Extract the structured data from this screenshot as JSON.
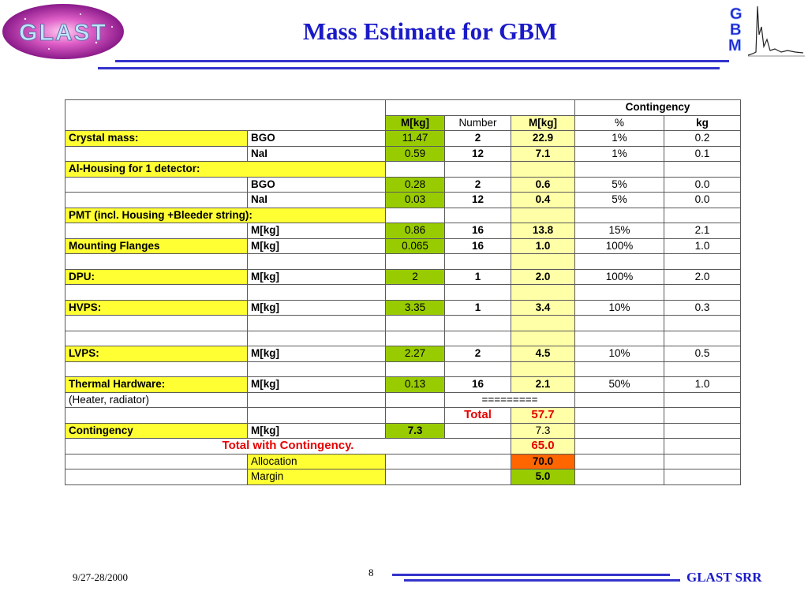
{
  "header": {
    "title": "Mass Estimate for GBM",
    "glast_logo_text": "GLAST",
    "gbm_logo_text": [
      "G",
      "B",
      "M"
    ]
  },
  "table": {
    "group_header": "Contingency",
    "columns": [
      "M[kg]",
      "Number",
      "M[kg]",
      "%",
      "kg"
    ],
    "rows": [
      {
        "label": "Crystal mass:",
        "sub": "BGO",
        "m": "11.47",
        "num": "2",
        "mt": "22.9",
        "pct": "1%",
        "kg": "0.2"
      },
      {
        "label": "",
        "sub": "NaI",
        "m": "0.59",
        "num": "12",
        "mt": "7.1",
        "pct": "1%",
        "kg": "0.1"
      },
      {
        "label": "Al-Housing for 1 detector:",
        "sub": "",
        "m": "",
        "num": "",
        "mt": "",
        "pct": "",
        "kg": ""
      },
      {
        "label": "",
        "sub": "BGO",
        "m": "0.28",
        "num": "2",
        "mt": "0.6",
        "pct": "5%",
        "kg": "0.0"
      },
      {
        "label": "",
        "sub": "NaI",
        "m": "0.03",
        "num": "12",
        "mt": "0.4",
        "pct": "5%",
        "kg": "0.0"
      },
      {
        "label": "PMT (incl. Housing +Bleeder string):",
        "sub": "",
        "m": "",
        "num": "",
        "mt": "",
        "pct": "",
        "kg": ""
      },
      {
        "label": "",
        "sub": "M[kg]",
        "m": "0.86",
        "num": "16",
        "mt": "13.8",
        "pct": "15%",
        "kg": "2.1"
      },
      {
        "label": "Mounting Flanges",
        "sub": "M[kg]",
        "m": "0.065",
        "num": "16",
        "mt": "1.0",
        "pct": "100%",
        "kg": "1.0"
      },
      {
        "label": "",
        "sub": "",
        "m": "",
        "num": "",
        "mt": "",
        "pct": "",
        "kg": ""
      },
      {
        "label": "DPU:",
        "sub": "M[kg]",
        "m": "2",
        "num": "1",
        "mt": "2.0",
        "pct": "100%",
        "kg": "2.0"
      },
      {
        "label": "",
        "sub": "",
        "m": "",
        "num": "",
        "mt": "",
        "pct": "",
        "kg": ""
      },
      {
        "label": "HVPS:",
        "sub": "M[kg]",
        "m": "3.35",
        "num": "1",
        "mt": "3.4",
        "pct": "10%",
        "kg": "0.3"
      },
      {
        "label": "",
        "sub": "",
        "m": "",
        "num": "",
        "mt": "",
        "pct": "",
        "kg": ""
      },
      {
        "label": "",
        "sub": "",
        "m": "",
        "num": "",
        "mt": "",
        "pct": "",
        "kg": ""
      },
      {
        "label": "LVPS:",
        "sub": "M[kg]",
        "m": "2.27",
        "num": "2",
        "mt": "4.5",
        "pct": "10%",
        "kg": "0.5"
      },
      {
        "label": "",
        "sub": "",
        "m": "",
        "num": "",
        "mt": "",
        "pct": "",
        "kg": ""
      },
      {
        "label": "Thermal Hardware:",
        "sub": "M[kg]",
        "m": "0.13",
        "num": "16",
        "mt": "2.1",
        "pct": "50%",
        "kg": "1.0"
      }
    ],
    "heater_note": "(Heater, radiator)",
    "separator": "=========",
    "total_label": "Total",
    "total_value": "57.7",
    "contingency_row": {
      "label": "Contingency",
      "sub": "M[kg]",
      "m": "7.3",
      "mt": "7.3"
    },
    "total_with_contingency_label": "Total with Contingency.",
    "total_with_contingency_value": "65.0",
    "allocation_label": "Allocation",
    "allocation_value": "70.0",
    "margin_label": "Margin",
    "margin_value": "5.0"
  },
  "footer": {
    "date": "9/27-28/2000",
    "page": "8",
    "org": "GLAST SRR"
  },
  "colors": {
    "title_blue": "#1a1ac8",
    "label_yellow": "#ffff33",
    "mass_green": "#99cc00",
    "total_light_yellow": "#ffffa8",
    "allocation_orange": "#ff6600",
    "total_red": "#e60000"
  }
}
